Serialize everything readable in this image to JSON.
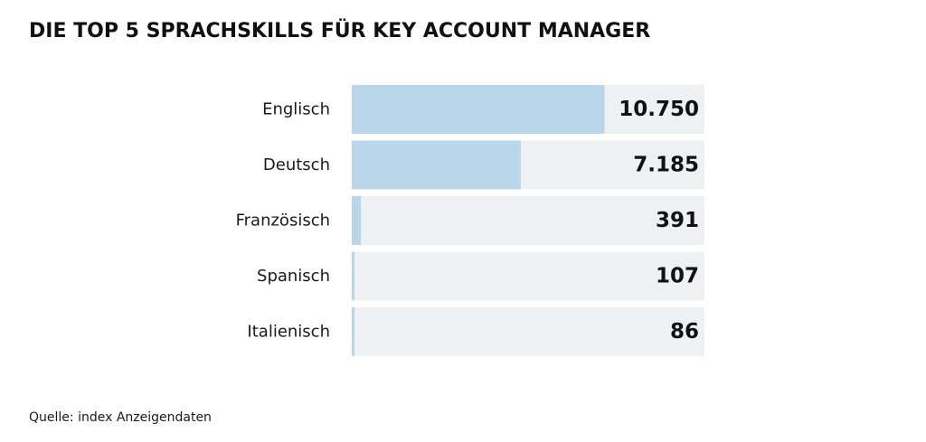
{
  "chart_data": {
    "type": "bar",
    "orientation": "horizontal",
    "title": "DIE TOP 5 SPRACHSKILLS FÜR KEY ACCOUNT MANAGER",
    "categories": [
      "Englisch",
      "Deutsch",
      "Französisch",
      "Spanisch",
      "Italienisch"
    ],
    "values": [
      10750,
      7185,
      391,
      107,
      86
    ],
    "value_labels": [
      "10.750",
      "7.185",
      "391",
      "107",
      "86"
    ],
    "xlim": [
      0,
      15000
    ],
    "grid": false,
    "legend": "none",
    "colors": {
      "bar": "#bad6ea",
      "track": "#eff0f2"
    }
  },
  "source": "Quelle: index Anzeigendaten"
}
